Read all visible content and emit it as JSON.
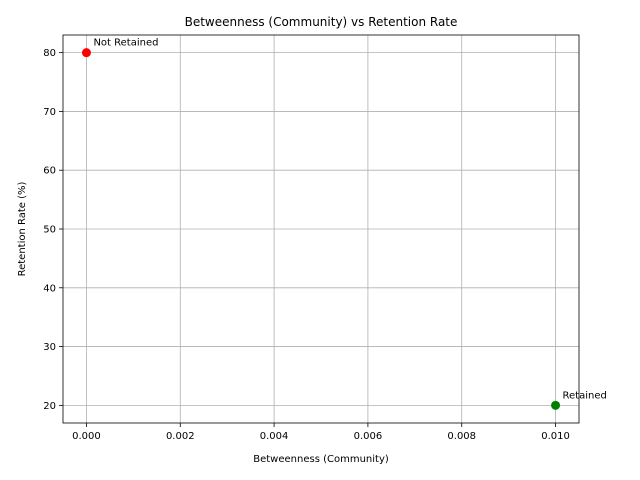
{
  "chart_data": {
    "type": "scatter",
    "title": "Betweenness (Community) vs Retention Rate",
    "xlabel": "Betweenness (Community)",
    "ylabel": "Retention Rate (%)",
    "xlim": [
      -0.0005,
      0.0105
    ],
    "ylim": [
      17,
      83
    ],
    "xticks": [
      0.0,
      0.002,
      0.004,
      0.006,
      0.008,
      0.01
    ],
    "xtick_labels": [
      "0.000",
      "0.002",
      "0.004",
      "0.006",
      "0.008",
      "0.010"
    ],
    "yticks": [
      20,
      30,
      40,
      50,
      60,
      70,
      80
    ],
    "ytick_labels": [
      "20",
      "30",
      "40",
      "50",
      "60",
      "70",
      "80"
    ],
    "grid": true,
    "points": [
      {
        "x": 0.0,
        "y": 80,
        "color": "#ff0000",
        "label": "Not Retained"
      },
      {
        "x": 0.01,
        "y": 20,
        "color": "#008000",
        "label": "Retained"
      }
    ]
  }
}
